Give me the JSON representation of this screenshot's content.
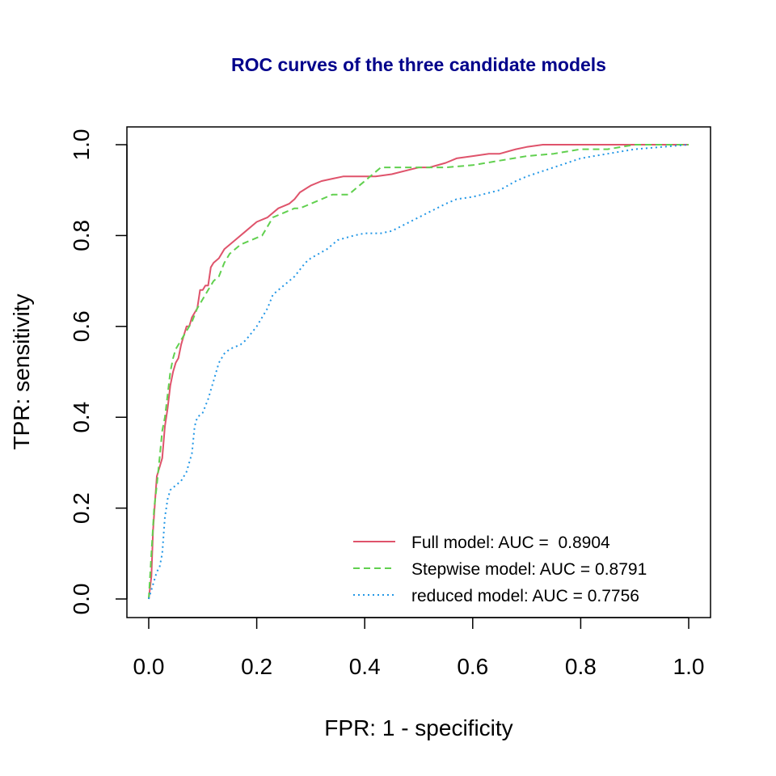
{
  "colors": {
    "title": "#00008B",
    "full": "#DF536B",
    "stepwise": "#61D04F",
    "reduced": "#2297E6",
    "axis": "#000000"
  },
  "chart_data": {
    "type": "line",
    "title": "ROC curves of the three candidate models",
    "xlabel": "FPR: 1 - specificity",
    "ylabel": "TPR: sensitivity",
    "xlim": [
      0,
      1
    ],
    "ylim": [
      0,
      1
    ],
    "xticks": [
      "0.0",
      "0.2",
      "0.4",
      "0.6",
      "0.8",
      "1.0"
    ],
    "yticks": [
      "0.0",
      "0.2",
      "0.4",
      "0.6",
      "0.8",
      "1.0"
    ],
    "grid": false,
    "legend_position": "bottom-right",
    "series": [
      {
        "name": "Full model: AUC =  0.8904",
        "line_style": "solid",
        "color": "#DF536B",
        "x": [
          0,
          0.005,
          0.008,
          0.012,
          0.015,
          0.02,
          0.025,
          0.03,
          0.035,
          0.04,
          0.045,
          0.05,
          0.055,
          0.06,
          0.065,
          0.07,
          0.075,
          0.08,
          0.085,
          0.09,
          0.095,
          0.1,
          0.105,
          0.11,
          0.115,
          0.12,
          0.13,
          0.14,
          0.15,
          0.16,
          0.18,
          0.2,
          0.22,
          0.24,
          0.26,
          0.27,
          0.28,
          0.3,
          0.32,
          0.34,
          0.36,
          0.38,
          0.4,
          0.42,
          0.45,
          0.5,
          0.52,
          0.55,
          0.57,
          0.6,
          0.63,
          0.65,
          0.68,
          0.7,
          0.73,
          0.8,
          0.9,
          1.0
        ],
        "y": [
          0,
          0.05,
          0.15,
          0.22,
          0.27,
          0.29,
          0.31,
          0.38,
          0.42,
          0.47,
          0.5,
          0.52,
          0.53,
          0.56,
          0.58,
          0.6,
          0.6,
          0.62,
          0.63,
          0.64,
          0.68,
          0.68,
          0.69,
          0.69,
          0.73,
          0.74,
          0.75,
          0.77,
          0.78,
          0.79,
          0.81,
          0.83,
          0.84,
          0.86,
          0.87,
          0.88,
          0.895,
          0.91,
          0.92,
          0.925,
          0.93,
          0.93,
          0.93,
          0.93,
          0.935,
          0.95,
          0.95,
          0.96,
          0.97,
          0.975,
          0.98,
          0.98,
          0.99,
          0.995,
          1.0,
          1.0,
          1.0,
          1.0
        ]
      },
      {
        "name": "Stepwise model: AUC = 0.8791",
        "line_style": "dashed",
        "color": "#61D04F",
        "x": [
          0,
          0.005,
          0.01,
          0.015,
          0.02,
          0.025,
          0.03,
          0.035,
          0.04,
          0.045,
          0.05,
          0.06,
          0.07,
          0.08,
          0.09,
          0.1,
          0.11,
          0.12,
          0.13,
          0.14,
          0.15,
          0.17,
          0.19,
          0.21,
          0.22,
          0.23,
          0.25,
          0.27,
          0.28,
          0.3,
          0.32,
          0.34,
          0.37,
          0.4,
          0.42,
          0.43,
          0.5,
          0.55,
          0.6,
          0.65,
          0.7,
          0.75,
          0.8,
          0.85,
          0.9,
          1.0
        ],
        "y": [
          0,
          0.1,
          0.2,
          0.25,
          0.31,
          0.37,
          0.4,
          0.45,
          0.5,
          0.53,
          0.55,
          0.57,
          0.59,
          0.61,
          0.64,
          0.66,
          0.68,
          0.7,
          0.71,
          0.74,
          0.76,
          0.78,
          0.79,
          0.8,
          0.82,
          0.84,
          0.85,
          0.86,
          0.86,
          0.87,
          0.88,
          0.89,
          0.89,
          0.92,
          0.94,
          0.95,
          0.95,
          0.95,
          0.955,
          0.965,
          0.975,
          0.98,
          0.99,
          0.99,
          1.0,
          1.0
        ]
      },
      {
        "name": "reduced model: AUC = 0.7756",
        "line_style": "dotted",
        "color": "#2297E6",
        "x": [
          0,
          0.005,
          0.01,
          0.015,
          0.02,
          0.025,
          0.03,
          0.035,
          0.04,
          0.05,
          0.06,
          0.07,
          0.08,
          0.085,
          0.09,
          0.1,
          0.11,
          0.12,
          0.13,
          0.14,
          0.15,
          0.17,
          0.18,
          0.2,
          0.22,
          0.23,
          0.25,
          0.27,
          0.29,
          0.3,
          0.33,
          0.35,
          0.38,
          0.4,
          0.43,
          0.45,
          0.5,
          0.55,
          0.57,
          0.6,
          0.65,
          0.68,
          0.7,
          0.75,
          0.8,
          0.85,
          0.9,
          1.0
        ],
        "y": [
          0,
          0.02,
          0.04,
          0.06,
          0.07,
          0.1,
          0.18,
          0.22,
          0.24,
          0.25,
          0.26,
          0.28,
          0.32,
          0.38,
          0.4,
          0.41,
          0.44,
          0.48,
          0.52,
          0.54,
          0.55,
          0.56,
          0.57,
          0.6,
          0.64,
          0.67,
          0.69,
          0.71,
          0.74,
          0.75,
          0.77,
          0.79,
          0.8,
          0.805,
          0.805,
          0.81,
          0.84,
          0.87,
          0.88,
          0.885,
          0.9,
          0.92,
          0.93,
          0.95,
          0.97,
          0.98,
          0.99,
          1.0
        ]
      }
    ]
  }
}
